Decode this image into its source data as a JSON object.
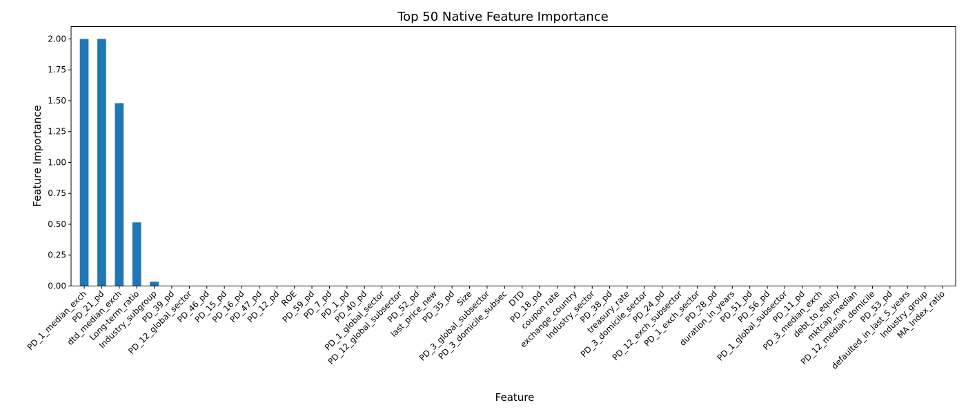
{
  "chart_data": {
    "type": "bar",
    "title": "Top 50 Native Feature Importance",
    "xlabel": "Feature",
    "ylabel": "Feature Importance",
    "ylim": [
      0,
      2.1
    ],
    "yticks": [
      "0.00",
      "0.25",
      "0.50",
      "0.75",
      "1.00",
      "1.25",
      "1.50",
      "1.75",
      "2.00"
    ],
    "grid": false,
    "legend": "none",
    "bar_color": "#1f77b4",
    "categories": [
      "PD_1_median_exch",
      "PD_21_pd",
      "dtd_median_exch",
      "Long-term_ratio",
      "Industry_subgroup",
      "PD_39_pd",
      "PD_12_global_sector",
      "PD_46_pd",
      "PD_15_pd",
      "PD_16_pd",
      "PD_47_pd",
      "PD_12_pd",
      "ROE",
      "PD_59_pd",
      "PD_7_pd",
      "PD_1_pd",
      "PD_40_pd",
      "PD_1_global_sector",
      "PD_12_global_subsector",
      "PD_52_pd",
      "last_price_new",
      "PD_35_pd",
      "Size",
      "PD_3_global_subsector",
      "PD_3_domicile_subsec",
      "DTD",
      "PD_18_pd",
      "coupon rate",
      "exchange_country",
      "Industry_sector",
      "PD_38_pd",
      "treasury_rate",
      "PD_3_domicile_sector",
      "PD_24_pd",
      "PD_12_exch_subsector",
      "PD_1_exch_sector",
      "PD_28_pd",
      "duration_in_years",
      "PD_51_pd",
      "PD_56_pd",
      "PD_1_global_subsector",
      "PD_11_pd",
      "PD_3_median_exch",
      "debt_to_equity",
      "mktcap_median",
      "PD_12_median_domicile",
      "PD_53_pd",
      "defaulted_in_last_5_years",
      "Industry_group",
      "MA_Index_ratio"
    ],
    "values": [
      2.0,
      2.0,
      1.48,
      0.515,
      0.035,
      0,
      0,
      0,
      0,
      0,
      0,
      0,
      0,
      0,
      0,
      0,
      0,
      0,
      0,
      0,
      0,
      0,
      0,
      0,
      0,
      0,
      0,
      0,
      0,
      0,
      0,
      0,
      0,
      0,
      0,
      0,
      0,
      0,
      0,
      0,
      0,
      0,
      0,
      0,
      0,
      0,
      0,
      0,
      0,
      0
    ]
  }
}
